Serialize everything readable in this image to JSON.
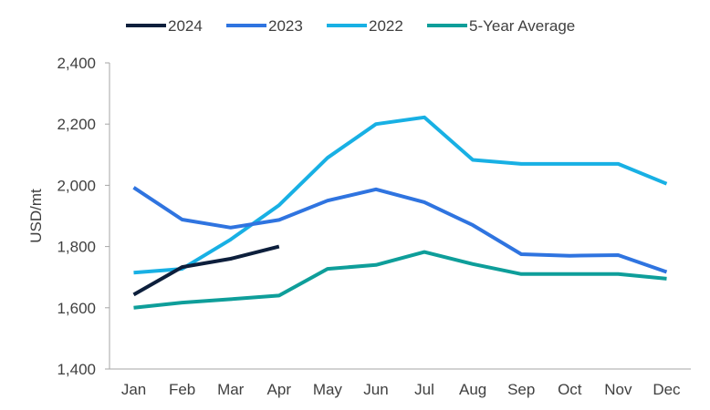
{
  "chart_data": {
    "type": "line",
    "title": "",
    "xlabel": "",
    "ylabel": "USD/mt",
    "ylim": [
      1400,
      2400
    ],
    "yticks": [
      1400,
      1600,
      1800,
      2000,
      2200,
      2400
    ],
    "ytick_labels": [
      "1,400",
      "1,600",
      "1,800",
      "2,000",
      "2,200",
      "2,400"
    ],
    "categories": [
      "Jan",
      "Feb",
      "Mar",
      "Apr",
      "May",
      "Jun",
      "Jul",
      "Aug",
      "Sep",
      "Oct",
      "Nov",
      "Dec"
    ],
    "grid": false,
    "legend": "top",
    "series": [
      {
        "name": "2024",
        "color": "#0d1f3c",
        "values": [
          1643,
          1733,
          1760,
          1800,
          null,
          null,
          null,
          null,
          null,
          null,
          null,
          null
        ]
      },
      {
        "name": "2023",
        "color": "#2f74e0",
        "values": [
          1993,
          1888,
          1862,
          1887,
          1950,
          1987,
          1945,
          1870,
          1775,
          1770,
          1772,
          1717
        ]
      },
      {
        "name": "2022",
        "color": "#18b0e4",
        "values": [
          1715,
          1727,
          1823,
          1935,
          2090,
          2200,
          2222,
          2083,
          2070,
          2070,
          2070,
          2005
        ]
      },
      {
        "name": "5-Year Average",
        "color": "#0e9e9a",
        "values": [
          1600,
          1617,
          1628,
          1640,
          1727,
          1740,
          1782,
          1743,
          1710,
          1710,
          1710,
          1695
        ]
      }
    ]
  }
}
